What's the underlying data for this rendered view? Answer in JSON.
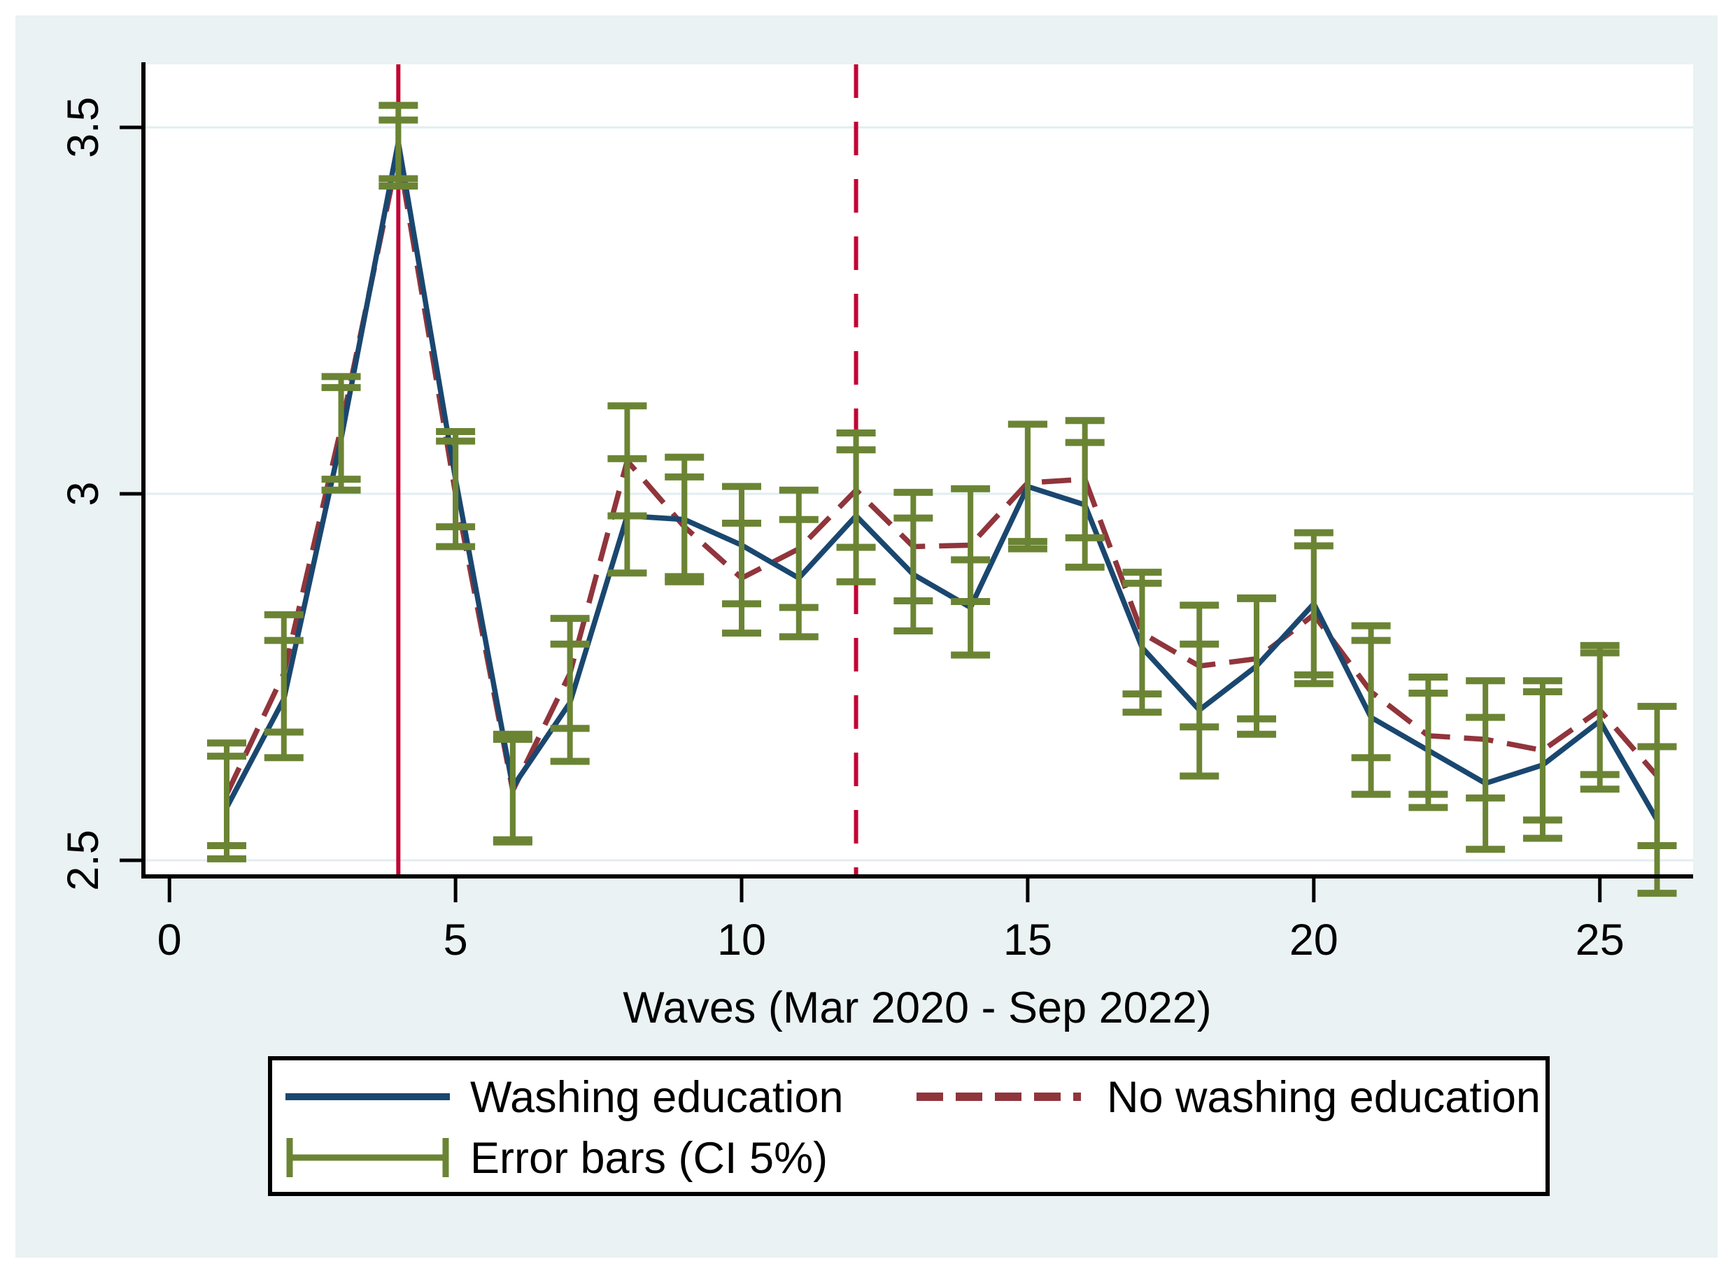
{
  "figure": {
    "background_color": "#eaf2f3",
    "plot_background_color": "#ffffff",
    "grid_color": "#e2edf0",
    "axis_color": "#000000"
  },
  "axes": {
    "x_label": "Waves (Mar 2020 - Sep 2022)",
    "x_tick_labels": [
      "0",
      "5",
      "10",
      "15",
      "20",
      "25"
    ],
    "y_tick_labels": [
      "3.5",
      "3",
      "2.5"
    ]
  },
  "legend": {
    "washing_label": "Washing education",
    "no_washing_label": "No washing education",
    "error_label": "Error bars (CI 5%)"
  },
  "chart_data": {
    "type": "line",
    "title": "",
    "xlabel": "Waves (Mar 2020 - Sep 2022)",
    "ylabel": "",
    "grid": "horizontal",
    "legend_position": "bottom",
    "xlim": [
      -0.455,
      26.63
    ],
    "ylim": [
      2.478,
      3.586
    ],
    "x_ticks": [
      {
        "v": 0,
        "label": "0"
      },
      {
        "v": 5,
        "label": "5"
      },
      {
        "v": 10,
        "label": "10"
      },
      {
        "v": 15,
        "label": "15"
      },
      {
        "v": 20,
        "label": "20"
      },
      {
        "v": 25,
        "label": "25"
      }
    ],
    "y_ticks": [
      {
        "v": 3.5,
        "label": "3.5"
      },
      {
        "v": 3,
        "label": "3"
      },
      {
        "v": 2.5,
        "label": "2.5"
      }
    ],
    "event_lines": [
      {
        "x": 4,
        "style": "solid",
        "color": "#c10534"
      },
      {
        "x": 12,
        "style": "dashed",
        "color": "#c10534"
      }
    ],
    "x": [
      1,
      2,
      3,
      4,
      5,
      6,
      7,
      8,
      9,
      10,
      11,
      12,
      13,
      14,
      15,
      16,
      17,
      18,
      19,
      20,
      21,
      22,
      23,
      24,
      25,
      26
    ],
    "series": [
      {
        "name": "No washing education",
        "color": "#90353b",
        "style": "dashed",
        "values": [
          2.59,
          2.755,
          3.09,
          3.465,
          3.0,
          2.595,
          2.755,
          3.045,
          2.955,
          2.885,
          2.925,
          3.005,
          2.928,
          2.93,
          3.015,
          3.02,
          2.81,
          2.765,
          2.775,
          2.835,
          2.73,
          2.67,
          2.665,
          2.65,
          2.705,
          2.615
        ]
      },
      {
        "name": "Washing education",
        "color": "#1a476f",
        "style": "solid",
        "values": [
          2.572,
          2.72,
          3.075,
          3.48,
          3.02,
          2.6,
          2.715,
          2.97,
          2.965,
          2.93,
          2.885,
          2.97,
          2.89,
          2.845,
          3.01,
          2.985,
          2.79,
          2.705,
          2.765,
          2.85,
          2.695,
          2.65,
          2.605,
          2.63,
          2.69,
          2.555
        ]
      }
    ],
    "error_bars": {
      "name": "Error bars (CI 5%)",
      "color": "#6b8434",
      "ci_no_washing": [
        0.07,
        0.08,
        0.07,
        0.045,
        0.072,
        0.07,
        0.075,
        0.075,
        0.068,
        0.075,
        0.08,
        0.078,
        0.074,
        0.077,
        0.08,
        0.08,
        0.083,
        0.083,
        0.082,
        0.094,
        0.09,
        0.08,
        0.08,
        0.095,
        0.088,
        0.095
      ],
      "ci_washing": [
        0.07,
        0.08,
        0.07,
        0.05,
        0.065,
        0.072,
        0.08,
        0.078,
        0.085,
        0.08,
        0.08,
        0.09,
        0.077,
        0.065,
        0.085,
        0.085,
        0.088,
        0.09,
        0.093,
        0.097,
        0.105,
        0.078,
        0.09,
        0.1,
        0.093,
        0.1
      ]
    }
  }
}
